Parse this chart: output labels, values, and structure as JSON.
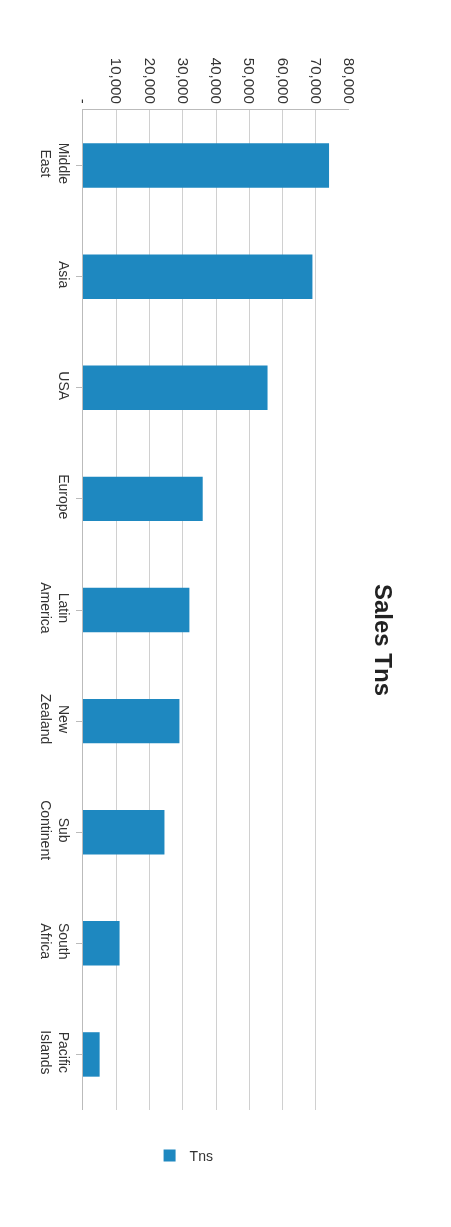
{
  "chart_data": {
    "type": "bar",
    "title": "Sales Tns",
    "orientation": "horizontal",
    "categories": [
      "Middle East",
      "Asia",
      "USA",
      "Europe",
      "Latin America",
      "New Zealand",
      "Sub Continent",
      "South Africa",
      "Pacific Islands"
    ],
    "series": [
      {
        "name": "Tns",
        "color": "#1e88c0",
        "values": [
          74000,
          69000,
          55500,
          36000,
          32000,
          29000,
          24500,
          11000,
          5000
        ]
      }
    ],
    "xlim": [
      0,
      80000
    ],
    "xticks": [
      {
        "value": 0,
        "label": "-"
      },
      {
        "value": 10000,
        "label": "10,000"
      },
      {
        "value": 20000,
        "label": "20,000"
      },
      {
        "value": 30000,
        "label": "30,000"
      },
      {
        "value": 40000,
        "label": "40,000"
      },
      {
        "value": 50000,
        "label": "50,000"
      },
      {
        "value": 60000,
        "label": "60,000"
      },
      {
        "value": 70000,
        "label": "70,000"
      },
      {
        "value": 80000,
        "label": "80,000"
      }
    ],
    "grid": "x",
    "legend": "bottom"
  }
}
